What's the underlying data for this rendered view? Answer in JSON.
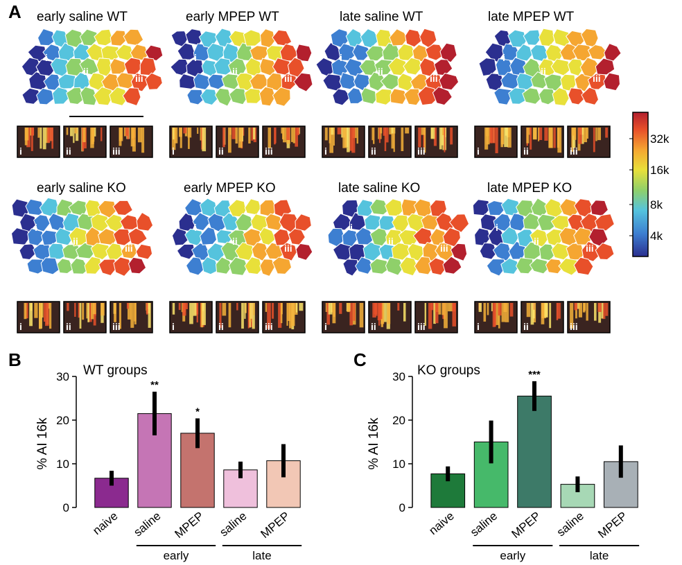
{
  "panel_letters": {
    "a": "A",
    "b": "B",
    "c": "C"
  },
  "map_titles": [
    "early saline WT",
    "early MPEP WT",
    "late saline WT",
    "late MPEP WT",
    "early saline KO",
    "early MPEP KO",
    "late saline KO",
    "late MPEP KO"
  ],
  "region_labels": [
    "i",
    "ii",
    "iii"
  ],
  "colorbar": {
    "ticks": [
      "32k",
      "16k",
      "8k",
      "4k"
    ],
    "colors": [
      "#2b2f8f",
      "#3d7fd1",
      "#55c3dd",
      "#8fd06a",
      "#e8e03a",
      "#f5a631",
      "#e8502a",
      "#b3202e"
    ]
  },
  "colors": {
    "wt_bars": [
      "#8b2a8f",
      "#c575b5",
      "#c4736e",
      "#efc0dc",
      "#f2c7b5"
    ],
    "ko_bars": [
      "#1e7a3a",
      "#46b96a",
      "#3d7a68",
      "#a7d8b5",
      "#a8b0b6"
    ]
  },
  "chart_data": [
    {
      "type": "bar",
      "title": "WT groups",
      "ylabel": "% AI 16k",
      "ylim": [
        0,
        30
      ],
      "yticks": [
        "0",
        "10",
        "20",
        "30"
      ],
      "categories": [
        "naive",
        "saline",
        "MPEP",
        "saline",
        "MPEP"
      ],
      "values": [
        6.7,
        21.5,
        17.0,
        8.6,
        10.7
      ],
      "errors": [
        1.7,
        5.0,
        3.4,
        1.9,
        3.8
      ],
      "significance": [
        "",
        "**",
        "*",
        "",
        ""
      ],
      "groups": [
        {
          "label": "early",
          "members": [
            1,
            2
          ]
        },
        {
          "label": "late",
          "members": [
            3,
            4
          ]
        }
      ]
    },
    {
      "type": "bar",
      "title": "KO groups",
      "ylabel": "% AI 16k",
      "ylim": [
        0,
        30
      ],
      "yticks": [
        "0",
        "10",
        "20",
        "30"
      ],
      "categories": [
        "naive",
        "saline",
        "MPEP",
        "saline",
        "MPEP"
      ],
      "values": [
        7.7,
        15.0,
        25.5,
        5.3,
        10.5
      ],
      "errors": [
        1.7,
        4.9,
        3.4,
        1.8,
        3.7
      ],
      "significance": [
        "",
        "",
        "***",
        "",
        ""
      ],
      "groups": [
        {
          "label": "early",
          "members": [
            1,
            2
          ]
        },
        {
          "label": "late",
          "members": [
            3,
            4
          ]
        }
      ]
    }
  ]
}
